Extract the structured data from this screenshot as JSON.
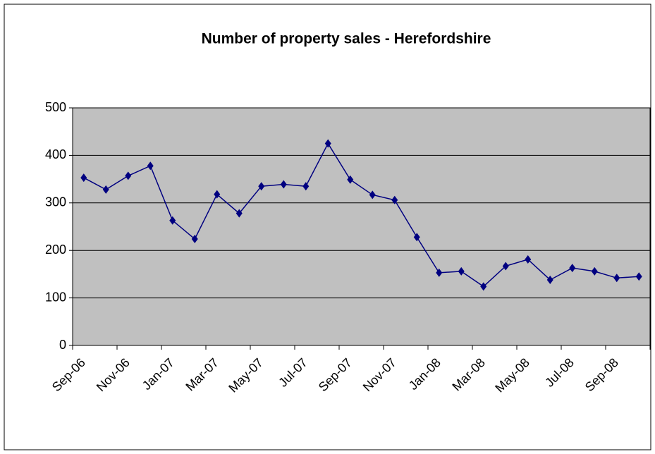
{
  "chart_data": {
    "type": "line",
    "title": "Number of property sales - Herefordshire",
    "categories": [
      "Sep-06",
      null,
      "Nov-06",
      null,
      "Jan-07",
      null,
      "Mar-07",
      null,
      "May-07",
      null,
      "Jul-07",
      null,
      "Sep-07",
      null,
      "Nov-07",
      null,
      "Jan-08",
      null,
      "Mar-08",
      null,
      "May-08",
      null,
      "Jul-08",
      null,
      "Sep-08",
      null
    ],
    "series": [
      {
        "name": "Number of property sales",
        "color": "#000080",
        "values": [
          353,
          328,
          357,
          378,
          263,
          224,
          318,
          278,
          335,
          339,
          335,
          425,
          349,
          317,
          306,
          228,
          153,
          156,
          124,
          167,
          181,
          138,
          163,
          156,
          142,
          145
        ]
      }
    ],
    "ylim": [
      0,
      500
    ],
    "yticks": [
      0,
      100,
      200,
      300,
      400,
      500
    ],
    "grid": true,
    "plot_background": "#c0c0c0"
  }
}
